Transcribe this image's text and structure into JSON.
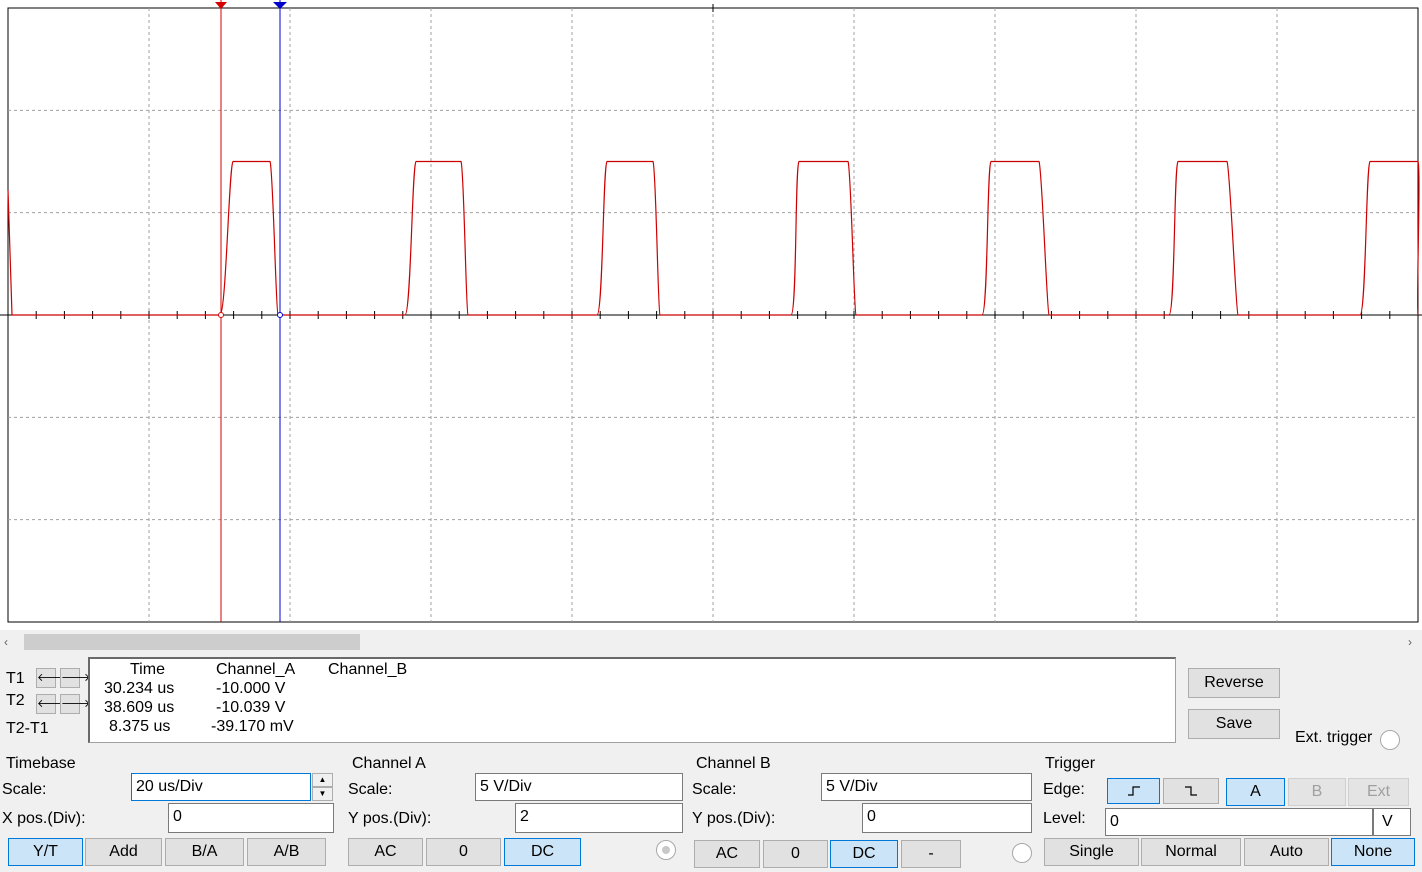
{
  "scope": {
    "trace_color": "#cc0000",
    "cursor_t1_color": "#d40000",
    "cursor_t2_color": "#0000cc",
    "grid_color": "#a0a0a0"
  },
  "cursors": {
    "t1_label": "T1",
    "t2_label": "T2",
    "diff_label": "T2-T1",
    "arrow_left": "🡐",
    "arrow_right": "🡒"
  },
  "readout": {
    "headers": [
      "Time",
      "Channel_A",
      "Channel_B"
    ],
    "rows": [
      {
        "time": "30.234 us",
        "channel_a": "-10.000 V",
        "channel_b": ""
      },
      {
        "time": "38.609 us",
        "channel_a": "-10.039 V",
        "channel_b": ""
      },
      {
        "time": "8.375 us",
        "channel_a": "-39.170 mV",
        "channel_b": ""
      }
    ]
  },
  "actions": {
    "reverse_label": "Reverse",
    "save_label": "Save",
    "ext_trigger_label": "Ext. trigger"
  },
  "timebase": {
    "title": "Timebase",
    "scale_label": "Scale:",
    "scale_value": "20 us/Div",
    "xpos_label": "X pos.(Div):",
    "xpos_value": "0",
    "modes": [
      "Y/T",
      "Add",
      "B/A",
      "A/B"
    ],
    "selected_mode": "Y/T"
  },
  "channel_a": {
    "title": "Channel A",
    "scale_label": "Scale:",
    "scale_value": "5  V/Div",
    "ypos_label": "Y pos.(Div):",
    "ypos_value": "2",
    "coupling": [
      "AC",
      "0",
      "DC"
    ],
    "selected_coupling": "DC"
  },
  "channel_b": {
    "title": "Channel B",
    "scale_label": "Scale:",
    "scale_value": "5  V/Div",
    "ypos_label": "Y pos.(Div):",
    "ypos_value": "0",
    "coupling": [
      "AC",
      "0",
      "DC",
      "-"
    ],
    "selected_coupling": "DC"
  },
  "trigger": {
    "title": "Trigger",
    "edge_label": "Edge:",
    "rising_icon": "rising-edge-icon",
    "falling_icon": "falling-edge-icon",
    "sources": [
      "A",
      "B",
      "Ext"
    ],
    "selected_source": "A",
    "level_label": "Level:",
    "level_value": "0",
    "level_unit": "V",
    "modes": [
      "Single",
      "Normal",
      "Auto",
      "None"
    ],
    "selected_mode": "None"
  }
}
